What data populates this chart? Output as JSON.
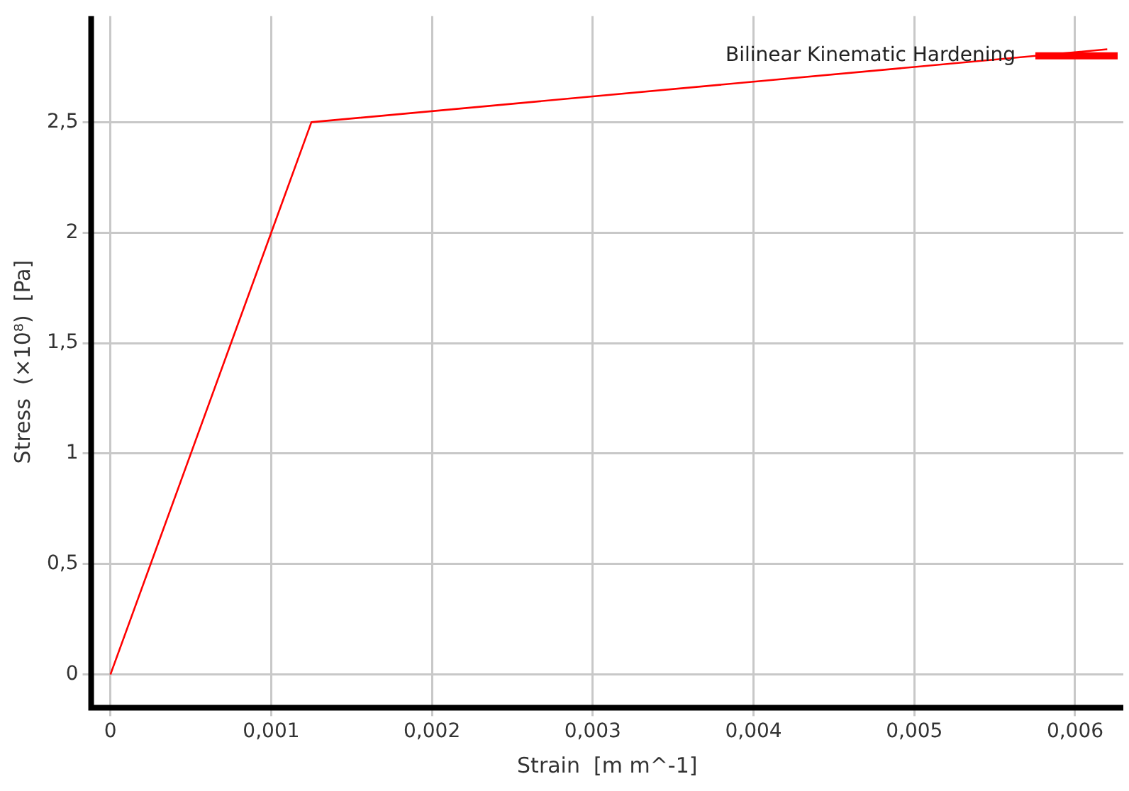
{
  "chart_data": {
    "type": "line",
    "xlabel": "Strain  [m m^-1]",
    "ylabel": "Stress  (×10⁸)  [Pa]",
    "x": [
      0,
      0.00125,
      0.0062
    ],
    "series": [
      {
        "name": "Bilinear Kinematic Hardening",
        "color": "#ff0000",
        "values": [
          0,
          2.5,
          2.83
        ]
      }
    ],
    "xlim": [
      -0.00012,
      0.0063
    ],
    "ylim": [
      -0.15,
      2.98
    ],
    "xticks": [
      0,
      {
        "value": 0.001,
        "label": "0,001"
      },
      {
        "value": 0.002,
        "label": "0,002"
      },
      {
        "value": 0.003,
        "label": "0,003"
      },
      {
        "value": 0.004,
        "label": "0,004"
      },
      {
        "value": 0.005,
        "label": "0,005"
      },
      {
        "value": 0.006,
        "label": "0,006"
      }
    ],
    "yticks": [
      0,
      {
        "value": 0.5,
        "label": "0,5"
      },
      1,
      {
        "value": 1.5,
        "label": "1,5"
      },
      2,
      {
        "value": 2.5,
        "label": "2,5"
      }
    ],
    "grid": true,
    "legend": "top right",
    "marker": "none",
    "line_style": "solid"
  }
}
